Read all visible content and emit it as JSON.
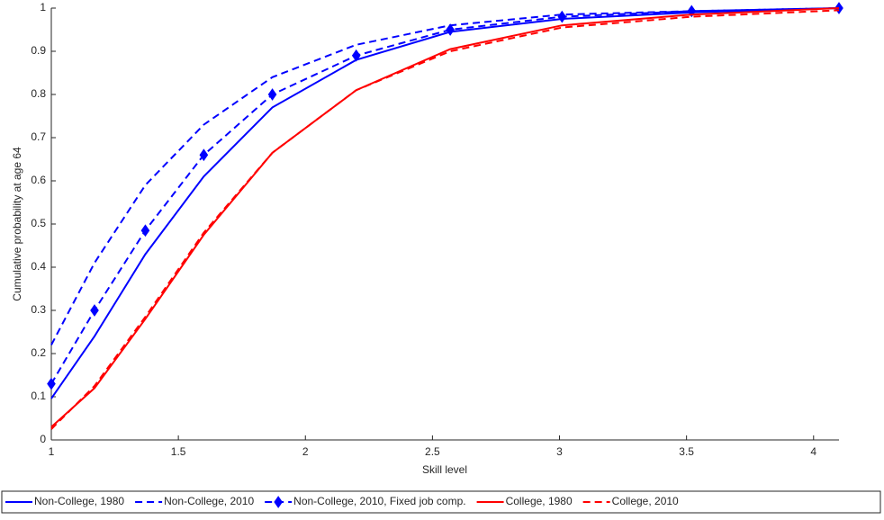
{
  "chart_data": {
    "type": "line",
    "xlabel": "Skill level",
    "ylabel": "Cumulative probability at age 64",
    "x": [
      1,
      1.17,
      1.37,
      1.6,
      1.87,
      2.2,
      2.57,
      3.01,
      3.52,
      4.1
    ],
    "series": [
      {
        "name": "Non-College, 1980",
        "color": "#0000ff",
        "line_style": "solid",
        "values": [
          0.096,
          0.24,
          0.43,
          0.61,
          0.77,
          0.88,
          0.945,
          0.975,
          0.99,
          1.0
        ]
      },
      {
        "name": "Non-College, 2010",
        "color": "#0000ff",
        "line_style": "dashed",
        "values": [
          0.22,
          0.41,
          0.59,
          0.73,
          0.84,
          0.915,
          0.96,
          0.985,
          0.993,
          1.0
        ]
      },
      {
        "name": "Non-College, 2010, Fixed job comp.",
        "color": "#0000ff",
        "line_style": "dashed",
        "marker": "diamond",
        "values": [
          0.13,
          0.3,
          0.485,
          0.66,
          0.8,
          0.89,
          0.95,
          0.98,
          0.993,
          1.0
        ]
      },
      {
        "name": "College, 1980",
        "color": "#ff0000",
        "line_style": "solid",
        "values": [
          0.03,
          0.12,
          0.28,
          0.475,
          0.665,
          0.81,
          0.905,
          0.96,
          0.985,
          1.0
        ]
      },
      {
        "name": "College, 2010",
        "color": "#ff0000",
        "line_style": "dashed",
        "values": [
          0.025,
          0.125,
          0.285,
          0.48,
          0.665,
          0.81,
          0.9,
          0.955,
          0.98,
          0.995
        ]
      }
    ],
    "xlim": [
      1,
      4.1
    ],
    "ylim": [
      0,
      1
    ],
    "xticks": [
      1,
      1.5,
      2,
      2.5,
      3,
      3.5,
      4
    ],
    "yticks": [
      0,
      0.1,
      0.2,
      0.3,
      0.4,
      0.5,
      0.6,
      0.7,
      0.8,
      0.9,
      1
    ],
    "legend": "bottom"
  }
}
